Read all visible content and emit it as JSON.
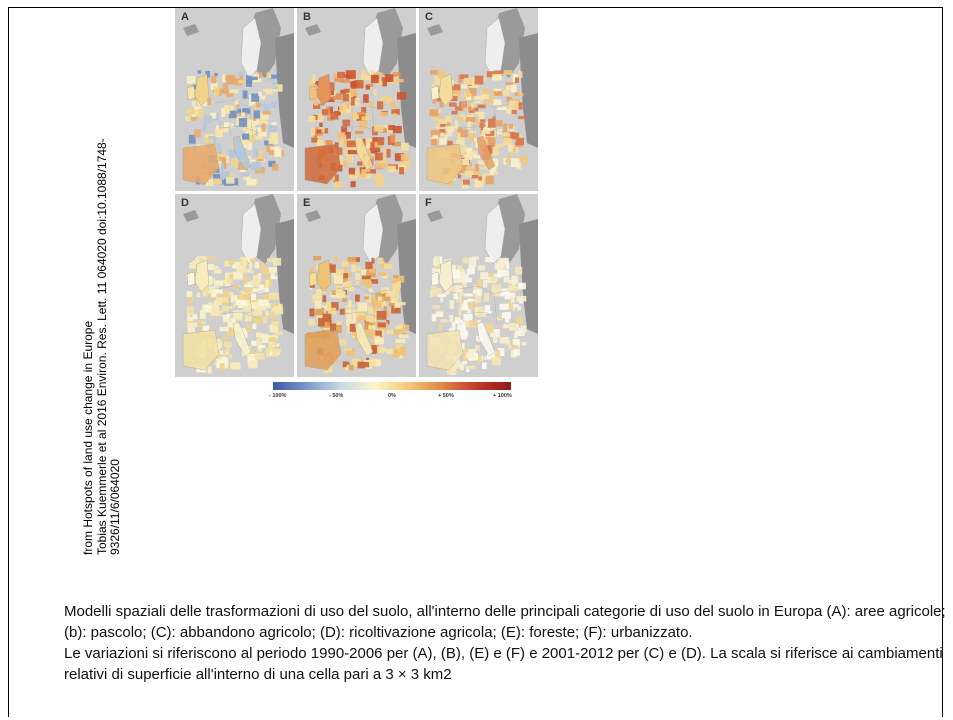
{
  "credit": {
    "line1": "from Hotspots of land use change in Europe",
    "line2": "Tobias Kuemmerle et al 2016 Environ. Res. Lett. 11 064020 doi:10.1088/1748-",
    "line3": "9326/11/6/064020"
  },
  "figure": {
    "panels": [
      {
        "letter": "A",
        "tone": "agricultural"
      },
      {
        "letter": "B",
        "tone": "pasture"
      },
      {
        "letter": "C",
        "tone": "abandonment"
      },
      {
        "letter": "D",
        "tone": "recultivation"
      },
      {
        "letter": "E",
        "tone": "forest"
      },
      {
        "letter": "F",
        "tone": "urban"
      }
    ],
    "scale_ticks": [
      "- 100%",
      "- 50%",
      "0%",
      "+ 50%",
      "+ 100%"
    ],
    "scale_colors": {
      "low": "#3b5aa8",
      "mid": "#fbf6c4",
      "high": "#8e1a1a"
    }
  },
  "caption": {
    "para1": "Modelli spaziali delle trasformazioni di uso del suolo, all'interno delle principali categorie di uso del suolo in Europa (A): aree agricole; (b): pascolo; (C): abbandono agricolo; (D): ricoltivazione agricola; (E): foreste; (F): urbanizzato.",
    "para2": "Le variazioni si riferiscono al periodo 1990-2006 per (A), (B), (E) e (F) e 2001-2012 per (C)  e (D). La scala si riferisce ai cambiamenti relativi di superficie all'interno di una cella pari a  3 × 3 km2"
  }
}
